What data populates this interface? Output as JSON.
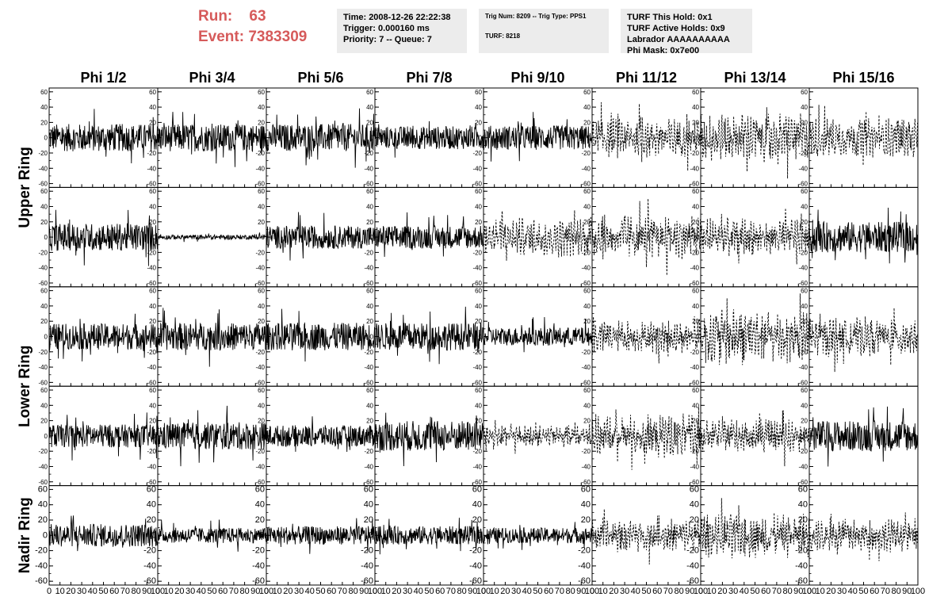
{
  "header": {
    "run_label": "Run:",
    "run_value": "63",
    "event_label": "Event:",
    "event_value": "7383309"
  },
  "panel_time": {
    "time": "Time: 2008-12-26 22:22:38",
    "trigger": "Trigger: 0.000160 ms",
    "priority": "Priority: 7 -- Queue: 7"
  },
  "panel_trig": {
    "trig": "Trig Num: 8209 -- Trig Type: PPS1",
    "turf": "TURF: 8218"
  },
  "panel_turf": {
    "hold": "TURF This Hold: 0x1",
    "active": "TURF Active Holds: 0x9",
    "labrador": "Labrador AAAAAAAAAA",
    "phimask": "Phi Mask: 0x7e00"
  },
  "chart_data": {
    "type": "line",
    "columns": [
      "Phi 1/2",
      "Phi 3/4",
      "Phi 5/6",
      "Phi 7/8",
      "Phi 9/10",
      "Phi 11/12",
      "Phi 13/14",
      "Phi 15/16"
    ],
    "row_groups": [
      {
        "label": "Upper Ring",
        "rows": [
          0,
          1
        ]
      },
      {
        "label": "Lower Ring",
        "rows": [
          2,
          3
        ]
      },
      {
        "label": "Nadir Ring",
        "rows": [
          4
        ]
      }
    ],
    "xlim": [
      0,
      100
    ],
    "ylim": [
      -65,
      65
    ],
    "xticks": [
      "0",
      "10",
      "20",
      "30",
      "40",
      "50",
      "60",
      "70",
      "80",
      "90",
      "100"
    ],
    "yticks": [
      "60",
      "40",
      "20",
      "0",
      "-20",
      "-40",
      "-60"
    ],
    "line_styles": [
      [
        "solid",
        "solid",
        "solid",
        "solid",
        "solid",
        "dashed",
        "dashed",
        "dashed"
      ],
      [
        "solid",
        "solid",
        "solid",
        "solid",
        "dashed",
        "dashed",
        "dashed",
        "solid"
      ],
      [
        "solid",
        "solid",
        "solid",
        "solid",
        "solid",
        "dashed",
        "dashed",
        "dashed"
      ],
      [
        "solid",
        "solid",
        "solid",
        "solid",
        "dashed",
        "dashed",
        "dashed",
        "solid"
      ],
      [
        "solid",
        "solid",
        "solid",
        "solid",
        "solid",
        "dashed",
        "dashed",
        "dashed"
      ]
    ],
    "amplitudes": [
      [
        18,
        18,
        18,
        15,
        16,
        18,
        22,
        18
      ],
      [
        18,
        3,
        15,
        15,
        18,
        20,
        18,
        20
      ],
      [
        17,
        18,
        18,
        18,
        12,
        15,
        25,
        18
      ],
      [
        15,
        18,
        14,
        20,
        10,
        20,
        15,
        20
      ],
      [
        15,
        10,
        12,
        12,
        10,
        15,
        20,
        15
      ]
    ],
    "series_color": "#000000"
  }
}
